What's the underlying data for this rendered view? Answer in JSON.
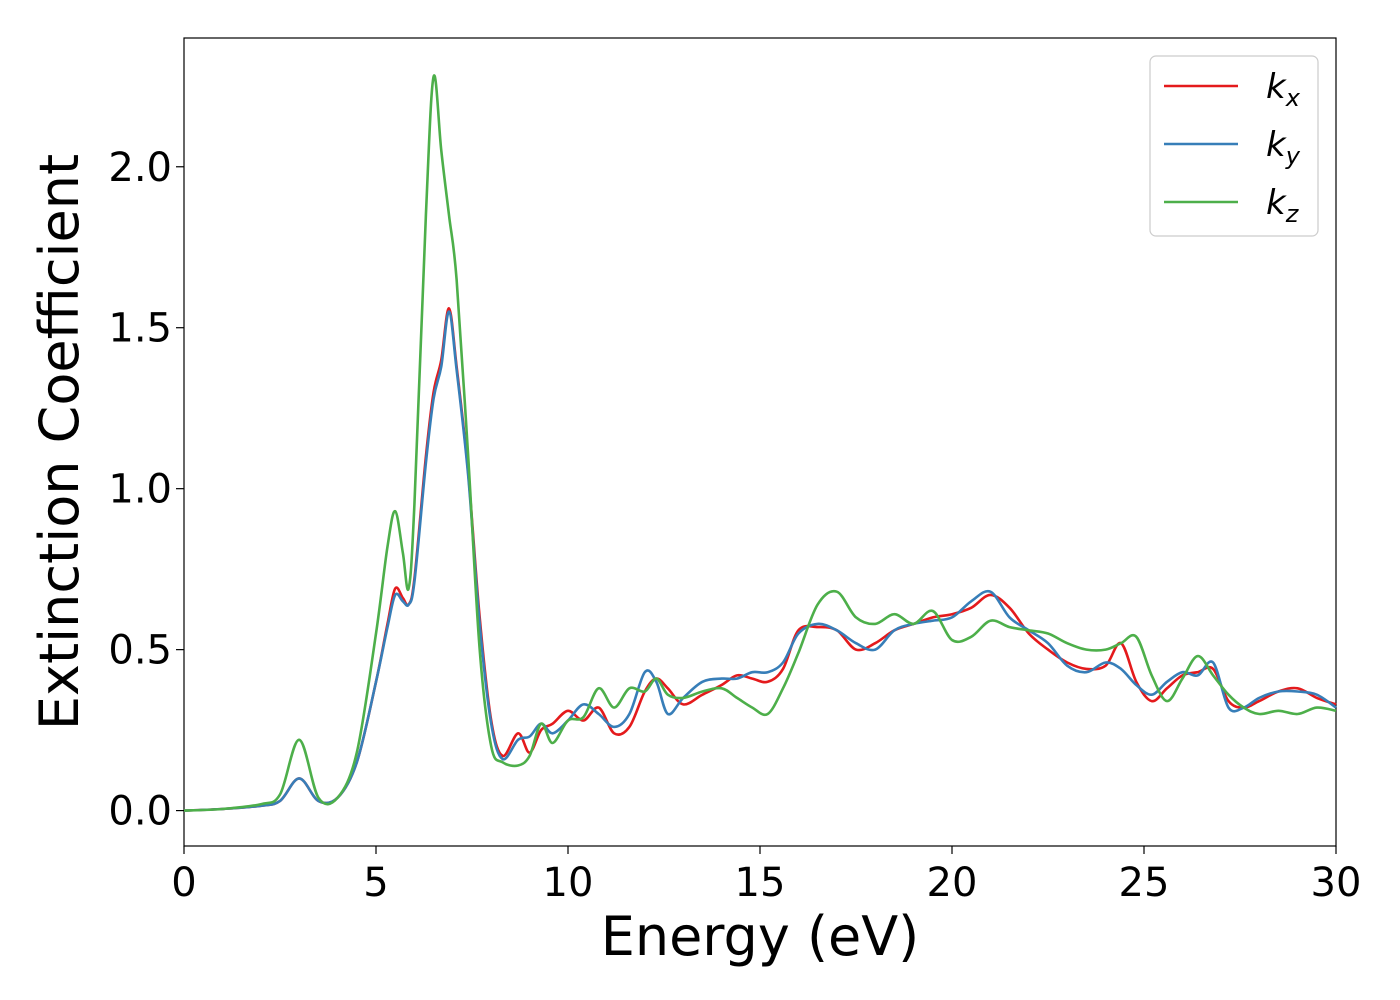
{
  "chart_data": {
    "type": "line",
    "title": "",
    "xlabel": "Energy (eV)",
    "ylabel": "Extinction Coefficient",
    "xlim": [
      0,
      30
    ],
    "ylim": [
      -0.11,
      2.4
    ],
    "xticks": [
      "0",
      "5",
      "10",
      "15",
      "20",
      "25",
      "30"
    ],
    "yticks": [
      "0.0",
      "0.5",
      "1.0",
      "1.5",
      "2.0"
    ],
    "grid": false,
    "legend_position": "top-right",
    "series": [
      {
        "name": "k_x",
        "legend_main": "k",
        "legend_sub": "x",
        "color": "#e41a1c",
        "x": [
          0,
          1,
          2,
          2.5,
          3.0,
          3.5,
          4.0,
          4.5,
          5.0,
          5.3,
          5.5,
          5.7,
          5.85,
          6.0,
          6.3,
          6.5,
          6.7,
          6.9,
          7.1,
          7.4,
          7.7,
          8.0,
          8.3,
          8.7,
          9.0,
          9.3,
          9.6,
          10.0,
          10.4,
          10.8,
          11.2,
          11.6,
          12.0,
          12.3,
          12.6,
          13.0,
          13.5,
          14.0,
          14.4,
          14.8,
          15.2,
          15.6,
          16.0,
          16.5,
          17.0,
          17.5,
          18.0,
          18.5,
          19.0,
          19.5,
          20.0,
          20.5,
          21.0,
          21.5,
          22.0,
          22.5,
          23.0,
          23.5,
          24.0,
          24.4,
          24.8,
          25.2,
          25.6,
          26.0,
          26.4,
          26.8,
          27.2,
          27.6,
          28.0,
          28.5,
          29.0,
          29.5,
          30.0
        ],
        "y": [
          0.0,
          0.005,
          0.015,
          0.03,
          0.1,
          0.03,
          0.04,
          0.15,
          0.4,
          0.58,
          0.69,
          0.66,
          0.64,
          0.72,
          1.1,
          1.3,
          1.4,
          1.56,
          1.38,
          1.05,
          0.6,
          0.28,
          0.17,
          0.24,
          0.18,
          0.25,
          0.27,
          0.31,
          0.28,
          0.32,
          0.24,
          0.26,
          0.37,
          0.41,
          0.38,
          0.33,
          0.36,
          0.39,
          0.42,
          0.41,
          0.4,
          0.44,
          0.56,
          0.57,
          0.56,
          0.5,
          0.52,
          0.56,
          0.58,
          0.6,
          0.61,
          0.63,
          0.67,
          0.63,
          0.55,
          0.5,
          0.46,
          0.44,
          0.45,
          0.52,
          0.4,
          0.34,
          0.38,
          0.42,
          0.43,
          0.44,
          0.34,
          0.32,
          0.34,
          0.37,
          0.38,
          0.35,
          0.33
        ]
      },
      {
        "name": "k_y",
        "legend_main": "k",
        "legend_sub": "y",
        "color": "#377eb8",
        "x": [
          0,
          1,
          2,
          2.5,
          3.0,
          3.5,
          4.0,
          4.5,
          5.0,
          5.3,
          5.5,
          5.7,
          5.85,
          6.0,
          6.3,
          6.5,
          6.7,
          6.9,
          7.1,
          7.4,
          7.7,
          8.0,
          8.3,
          8.7,
          9.0,
          9.3,
          9.6,
          10.0,
          10.4,
          10.8,
          11.2,
          11.6,
          12.0,
          12.3,
          12.6,
          13.0,
          13.5,
          14.0,
          14.4,
          14.8,
          15.2,
          15.6,
          16.0,
          16.5,
          17.0,
          17.5,
          18.0,
          18.5,
          19.0,
          19.5,
          20.0,
          20.5,
          21.0,
          21.5,
          22.0,
          22.5,
          23.0,
          23.5,
          24.0,
          24.4,
          24.8,
          25.2,
          25.6,
          26.0,
          26.4,
          26.8,
          27.2,
          27.6,
          28.0,
          28.5,
          29.0,
          29.5,
          30.0
        ],
        "y": [
          0.0,
          0.005,
          0.015,
          0.03,
          0.1,
          0.03,
          0.04,
          0.15,
          0.4,
          0.57,
          0.67,
          0.65,
          0.64,
          0.71,
          1.08,
          1.28,
          1.38,
          1.55,
          1.37,
          1.04,
          0.58,
          0.27,
          0.16,
          0.22,
          0.23,
          0.27,
          0.24,
          0.28,
          0.33,
          0.3,
          0.26,
          0.3,
          0.43,
          0.4,
          0.3,
          0.35,
          0.4,
          0.41,
          0.41,
          0.43,
          0.43,
          0.46,
          0.55,
          0.58,
          0.56,
          0.52,
          0.5,
          0.56,
          0.58,
          0.59,
          0.6,
          0.65,
          0.68,
          0.6,
          0.56,
          0.52,
          0.45,
          0.43,
          0.46,
          0.44,
          0.39,
          0.36,
          0.4,
          0.43,
          0.42,
          0.46,
          0.32,
          0.32,
          0.35,
          0.37,
          0.37,
          0.36,
          0.32
        ]
      },
      {
        "name": "k_z",
        "legend_main": "k",
        "legend_sub": "z",
        "color": "#4daf4a",
        "x": [
          0,
          1,
          2,
          2.5,
          3.0,
          3.5,
          4.0,
          4.5,
          5.0,
          5.3,
          5.5,
          5.7,
          5.85,
          6.0,
          6.3,
          6.5,
          6.7,
          6.9,
          7.1,
          7.4,
          7.7,
          8.0,
          8.3,
          8.7,
          9.0,
          9.3,
          9.6,
          10.0,
          10.4,
          10.8,
          11.2,
          11.6,
          12.0,
          12.3,
          12.6,
          13.0,
          13.5,
          14.0,
          14.4,
          14.8,
          15.2,
          15.6,
          16.0,
          16.5,
          17.0,
          17.5,
          18.0,
          18.5,
          19.0,
          19.5,
          20.0,
          20.5,
          21.0,
          21.5,
          22.0,
          22.5,
          23.0,
          23.5,
          24.0,
          24.4,
          24.8,
          25.2,
          25.6,
          26.0,
          26.4,
          26.8,
          27.2,
          27.6,
          28.0,
          28.5,
          29.0,
          29.5,
          30.0
        ],
        "y": [
          0.0,
          0.005,
          0.02,
          0.05,
          0.22,
          0.04,
          0.04,
          0.18,
          0.55,
          0.82,
          0.93,
          0.8,
          0.69,
          0.95,
          1.85,
          2.28,
          2.05,
          1.85,
          1.65,
          1.1,
          0.5,
          0.2,
          0.15,
          0.14,
          0.17,
          0.27,
          0.21,
          0.28,
          0.29,
          0.38,
          0.32,
          0.38,
          0.37,
          0.41,
          0.36,
          0.35,
          0.37,
          0.38,
          0.35,
          0.32,
          0.3,
          0.38,
          0.49,
          0.64,
          0.68,
          0.6,
          0.58,
          0.61,
          0.58,
          0.62,
          0.53,
          0.54,
          0.59,
          0.57,
          0.56,
          0.55,
          0.52,
          0.5,
          0.5,
          0.52,
          0.54,
          0.42,
          0.34,
          0.41,
          0.48,
          0.42,
          0.36,
          0.32,
          0.3,
          0.31,
          0.3,
          0.32,
          0.31
        ]
      }
    ]
  }
}
